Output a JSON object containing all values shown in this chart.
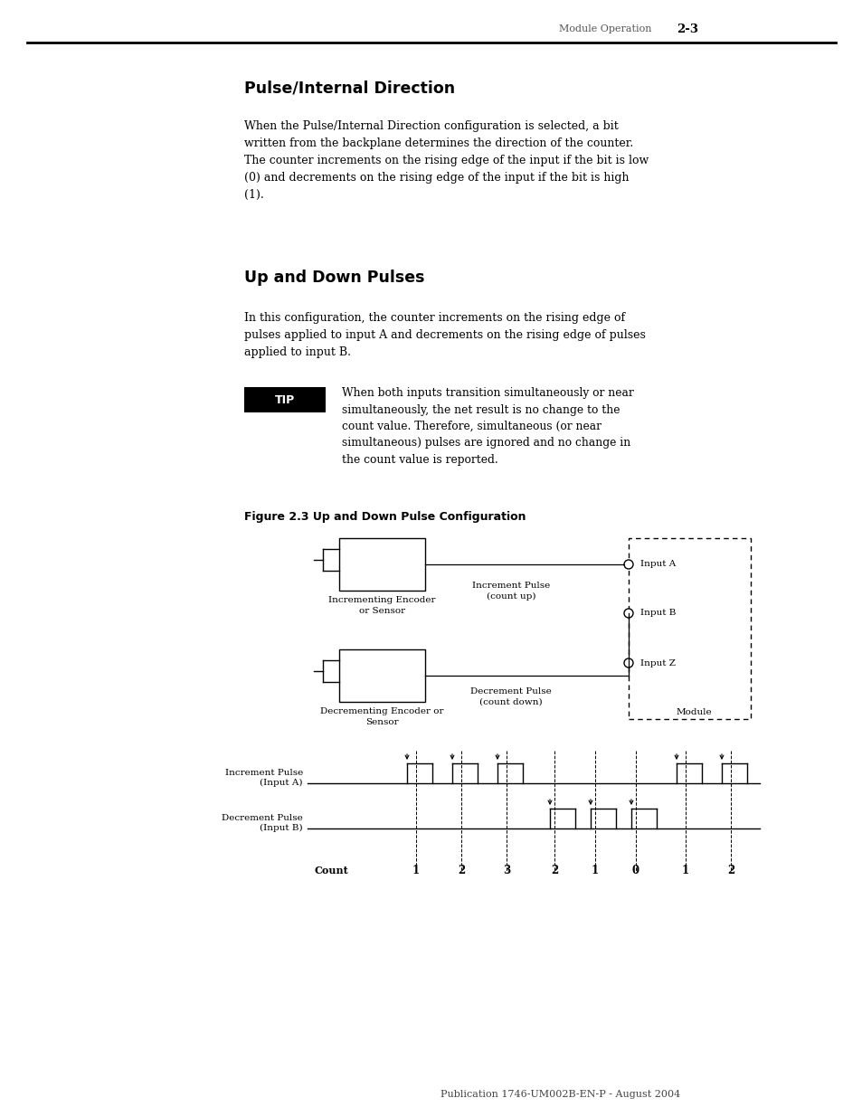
{
  "page_header_left": "Module Operation",
  "page_header_right": "2-3",
  "section1_title": "Pulse/Internal Direction",
  "section1_body": "When the Pulse/Internal Direction configuration is selected, a bit\nwritten from the backplane determines the direction of the counter.\nThe counter increments on the rising edge of the input if the bit is low\n(0) and decrements on the rising edge of the input if the bit is high\n(1).",
  "section2_title": "Up and Down Pulses",
  "section2_body": "In this configuration, the counter increments on the rising edge of\npulses applied to input A and decrements on the rising edge of pulses\napplied to input B.",
  "tip_label": "TIP",
  "tip_text": "When both inputs transition simultaneously or near\nsimultaneously, the net result is no change to the\ncount value. Therefore, simultaneous (or near\nsimultaneous) pulses are ignored and no change in\nthe count value is reported.",
  "figure_title": "Figure 2.3 Up and Down Pulse Configuration",
  "footer": "Publication 1746-UM002B-EN-P - August 2004",
  "bg_color": "#ffffff",
  "text_color": "#000000",
  "count_vals": [
    "1",
    "2",
    "3",
    "2",
    "1",
    "0",
    "1",
    "2"
  ]
}
